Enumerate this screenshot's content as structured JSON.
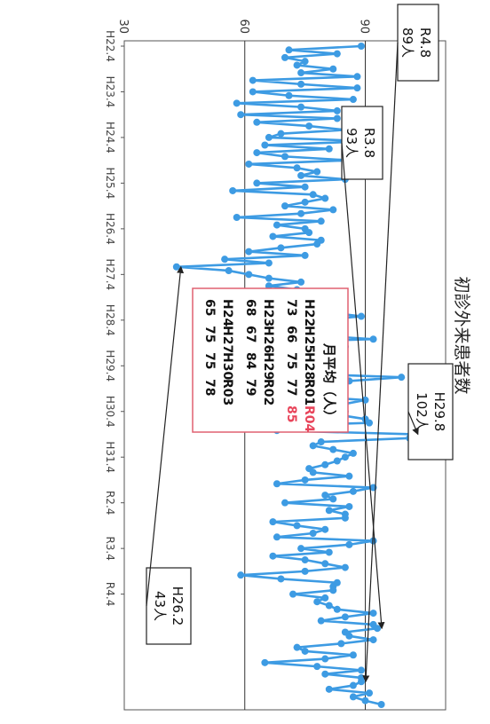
{
  "chart_data": {
    "type": "line",
    "title": "初診外来患者数",
    "orientation": "rotated-90-clockwise",
    "x_tick_labels": [
      "H22.4",
      "H23.4",
      "H24.4",
      "H25.4",
      "H26.4",
      "H27.4",
      "H28.4",
      "H29.4",
      "H30.4",
      "H31.4",
      "R2.4",
      "R3.4",
      "R4.4"
    ],
    "y_ticks": [
      30,
      60,
      90
    ],
    "ylim": [
      30,
      110
    ],
    "grid": "horizontal at 60 and 90",
    "series_color": "#3d9be3",
    "series": [
      {
        "values": [
          89,
          71,
          83,
          70,
          75,
          73,
          82,
          74,
          88,
          62,
          74,
          88,
          62,
          71,
          87,
          58,
          74,
          83,
          59,
          83,
          63,
          76,
          85,
          69,
          66,
          91,
          65,
          81,
          63,
          70,
          86,
          61,
          73,
          78,
          74,
          85,
          63,
          75,
          57,
          77,
          80,
          75,
          70,
          82,
          74,
          58,
          79,
          68,
          75,
          76,
          67,
          79,
          78,
          69,
          61,
          75,
          55,
          66,
          43,
          56,
          61,
          66,
          74,
          66,
          73,
          71,
          69,
          65,
          83,
          75,
          81,
          89,
          78,
          80,
          63,
          70,
          77,
          92,
          61,
          85,
          67,
          79,
          72,
          71,
          59,
          76,
          71,
          99,
          86,
          80,
          82,
          83,
          75,
          90,
          85,
          78,
          85,
          84,
          90,
          91,
          60,
          68,
          102,
          101,
          79,
          77,
          82,
          87,
          85,
          83,
          80,
          76,
          77,
          86,
          75,
          68,
          92,
          87,
          80,
          82,
          70,
          86,
          81,
          85,
          85,
          67,
          73,
          80,
          77,
          68,
          92,
          86,
          74,
          81,
          67,
          75,
          80,
          85,
          75,
          59,
          69,
          83,
          82,
          82,
          72,
          80,
          78,
          81,
          83,
          92,
          85,
          79,
          92,
          93,
          85,
          86,
          92,
          84,
          73,
          75,
          87,
          80,
          65,
          78,
          89,
          80,
          89,
          89,
          87,
          81,
          91,
          87,
          90,
          94
        ]
      }
    ],
    "annotations": [
      {
        "label": "R4.8",
        "value": "89人"
      },
      {
        "label": "R3.8",
        "value": "93人"
      },
      {
        "label": "H29.8",
        "value": "102人"
      },
      {
        "label": "H26.2",
        "value": "43人"
      }
    ],
    "legend_box": {
      "header": "月平均（人）",
      "entries": [
        {
          "year": "H22",
          "value": "73"
        },
        {
          "year": "H23",
          "value": "68"
        },
        {
          "year": "H24",
          "value": "65"
        },
        {
          "year": "H25",
          "value": "66"
        },
        {
          "year": "H26",
          "value": "67"
        },
        {
          "year": "H27",
          "value": "75"
        },
        {
          "year": "H28",
          "value": "75"
        },
        {
          "year": "H29",
          "value": "84"
        },
        {
          "year": "H30",
          "value": "75"
        },
        {
          "year": "R01",
          "value": "77"
        },
        {
          "year": "R02",
          "value": "79"
        },
        {
          "year": "R03",
          "value": "78"
        },
        {
          "year": "R04",
          "value": "85",
          "highlight_color": "#e8445a"
        }
      ]
    }
  }
}
